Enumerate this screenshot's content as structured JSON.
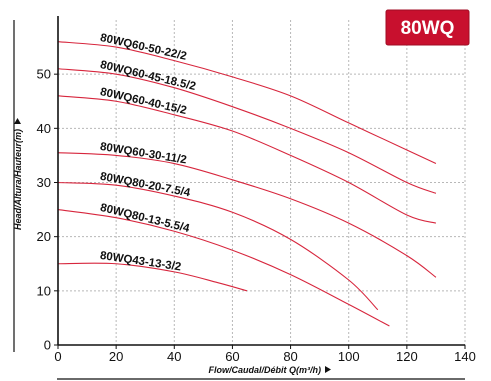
{
  "chart_data": {
    "type": "line",
    "badge": "80WQ",
    "xlabel": "Flow/Caudal/Débit Q(m³/h)",
    "ylabel": "Head/Altura/Hauteur(m)",
    "xlim": [
      0,
      140
    ],
    "ylim": [
      0,
      60
    ],
    "x_ticks": [
      0,
      20,
      40,
      60,
      80,
      100,
      120,
      140
    ],
    "y_ticks": [
      0,
      10,
      20,
      30,
      40,
      50
    ],
    "grid": true,
    "series": [
      {
        "name": "80WQ60-50-22/2",
        "x": [
          0,
          20,
          40,
          60,
          80,
          100,
          120,
          130
        ],
        "y": [
          56,
          55,
          52.5,
          49.5,
          46,
          41,
          36,
          33.5
        ]
      },
      {
        "name": "80WQ60-45-18.5/2",
        "x": [
          0,
          20,
          40,
          60,
          80,
          100,
          120,
          130
        ],
        "y": [
          51,
          50,
          47.5,
          44,
          40,
          35.5,
          30,
          28
        ]
      },
      {
        "name": "80WQ60-40-15/2",
        "x": [
          0,
          20,
          40,
          60,
          80,
          100,
          120,
          130
        ],
        "y": [
          46,
          45,
          42.5,
          39.5,
          35,
          30,
          24,
          22.5
        ]
      },
      {
        "name": "80WQ60-30-11/2",
        "x": [
          0,
          20,
          40,
          60,
          80,
          100,
          120,
          130
        ],
        "y": [
          35.5,
          35,
          33.5,
          30.5,
          27,
          22.5,
          16.5,
          12.5
        ]
      },
      {
        "name": "80WQ80-20-7.5/4",
        "x": [
          0,
          20,
          40,
          60,
          80,
          100,
          110
        ],
        "y": [
          30,
          29.5,
          27.5,
          24.5,
          19.5,
          12,
          6.5
        ]
      },
      {
        "name": "80WQ80-13-5.5/4",
        "x": [
          0,
          20,
          40,
          60,
          80,
          100,
          114
        ],
        "y": [
          25,
          23.5,
          21,
          17.5,
          13,
          7.5,
          3.5
        ]
      },
      {
        "name": "80WQ43-13-3/2",
        "x": [
          0,
          20,
          40,
          55,
          65
        ],
        "y": [
          15,
          15,
          13.5,
          11.5,
          10
        ]
      }
    ]
  }
}
